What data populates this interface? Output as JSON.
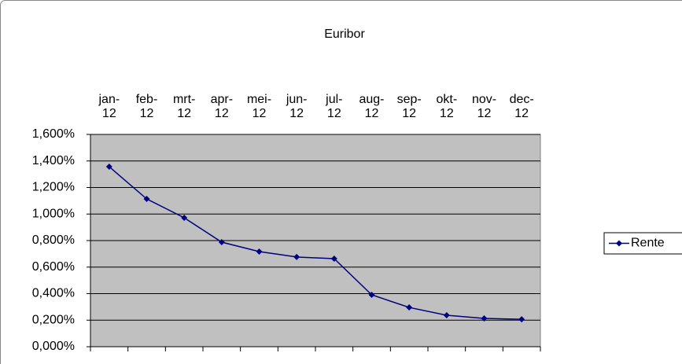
{
  "chart_data": {
    "type": "line",
    "title": "Euribor",
    "categories": [
      "jan-12",
      "feb-12",
      "mrt-12",
      "apr-12",
      "mei-12",
      "jun-12",
      "jul-12",
      "aug-12",
      "sep-12",
      "okt-12",
      "nov-12",
      "dec-12"
    ],
    "series": [
      {
        "name": "Rente",
        "color": "#000080",
        "values": [
          1.357,
          1.114,
          0.972,
          0.788,
          0.717,
          0.676,
          0.664,
          0.391,
          0.296,
          0.237,
          0.213,
          0.207
        ]
      }
    ],
    "ylim": [
      0,
      1.6
    ],
    "yticks": [
      {
        "value": 0,
        "label": "0,000%"
      },
      {
        "value": 0.2,
        "label": "0,200%"
      },
      {
        "value": 0.4,
        "label": "0,400%"
      },
      {
        "value": 0.6,
        "label": "0,600%"
      },
      {
        "value": 0.8,
        "label": "0,800%"
      },
      {
        "value": 1.0,
        "label": "1,000%"
      },
      {
        "value": 1.2,
        "label": "1,200%"
      },
      {
        "value": 1.4,
        "label": "1,400%"
      },
      {
        "value": 1.6,
        "label": "1,600%"
      }
    ],
    "grid": true,
    "plot_background": "#c0c0c0",
    "legend": "right"
  }
}
